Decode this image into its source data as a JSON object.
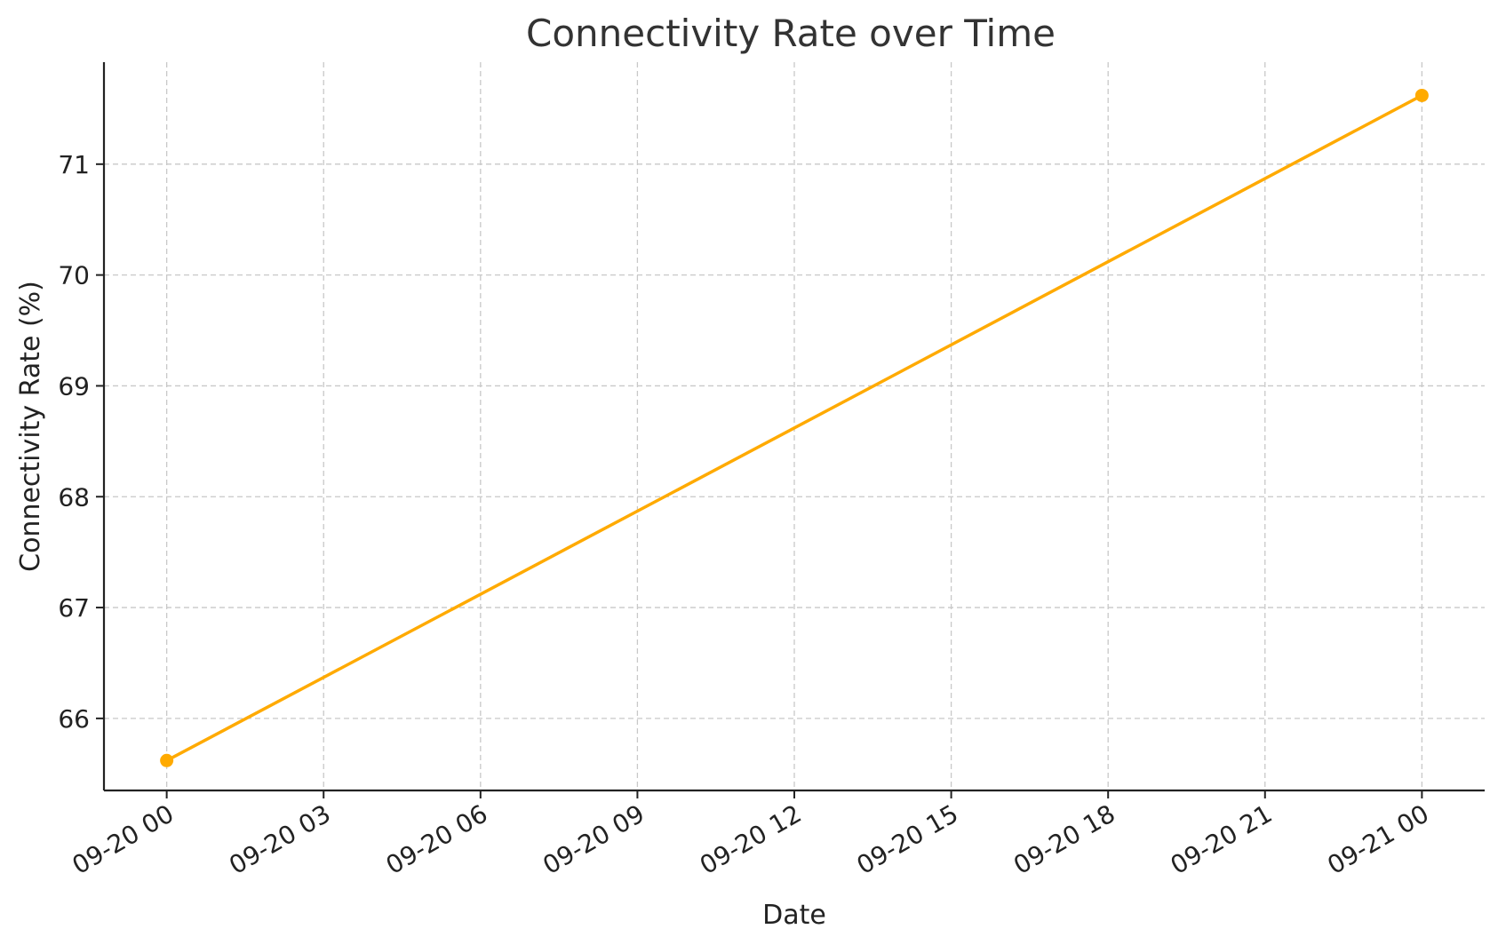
{
  "chart_data": {
    "type": "line",
    "title": "Connectivity Rate over Time",
    "xlabel": "Date",
    "ylabel": "Connectivity Rate (%)",
    "x_ticks": [
      "09-20 00",
      "09-20 03",
      "09-20 06",
      "09-20 09",
      "09-20 12",
      "09-20 15",
      "09-20 18",
      "09-20 21",
      "09-21 00"
    ],
    "x_tick_hours": [
      0,
      3,
      6,
      9,
      12,
      15,
      18,
      21,
      24
    ],
    "y_ticks": [
      66,
      67,
      68,
      69,
      70,
      71
    ],
    "xlim_hours": [
      -1.2,
      25.2
    ],
    "ylim": [
      65.35,
      71.92
    ],
    "grid": true,
    "series": [
      {
        "name": "Connectivity Rate",
        "color": "#FFAA00",
        "x": [
          "09-20 00",
          "09-21 00"
        ],
        "x_hours": [
          0,
          24
        ],
        "values": [
          65.62,
          71.62
        ]
      }
    ]
  }
}
